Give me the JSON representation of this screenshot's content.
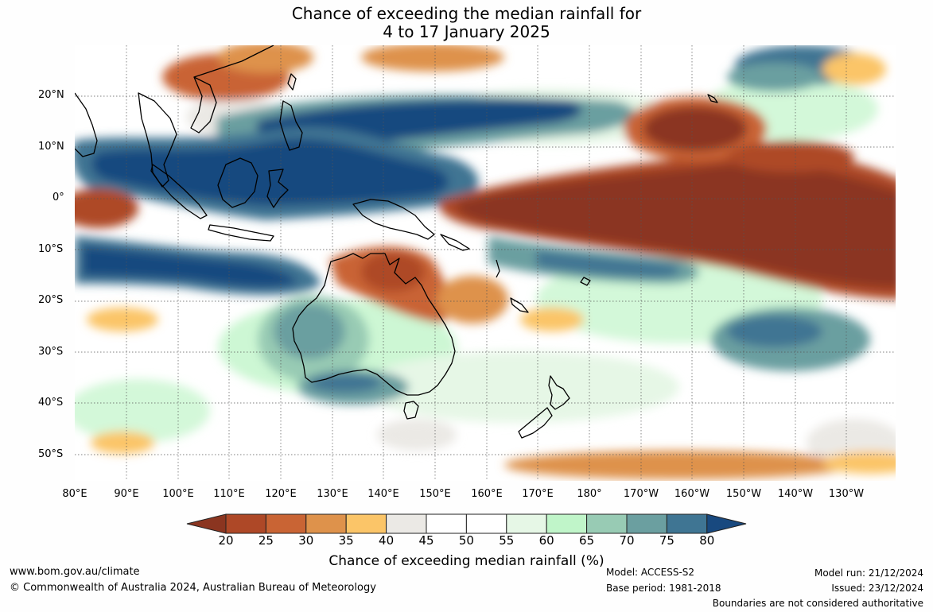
{
  "title": {
    "line1": "Chance of exceeding the median rainfall for",
    "line2": "4 to 17 January 2025"
  },
  "axes": {
    "lat_labels": [
      "20°N",
      "10°N",
      "0°",
      "10°S",
      "20°S",
      "30°S",
      "40°S",
      "50°S"
    ],
    "lon_labels": [
      "80°E",
      "90°E",
      "100°E",
      "110°E",
      "120°E",
      "130°E",
      "140°E",
      "150°E",
      "160°E",
      "170°E",
      "180°",
      "170°W",
      "160°W",
      "150°W",
      "140°W",
      "130°W"
    ]
  },
  "colorbar": {
    "ticks": [
      "20",
      "25",
      "30",
      "35",
      "40",
      "45",
      "50",
      "55",
      "60",
      "65",
      "70",
      "75",
      "80"
    ],
    "colors": [
      "#8b3520",
      "#ae4827",
      "#c96434",
      "#de924b",
      "#fbc568",
      "#ebe9e5",
      "#ffffff",
      "#ffffff",
      "#e6f7e6",
      "#c0f5c9",
      "#98cbb4",
      "#6b9fa0",
      "#3f7593",
      "#18497f"
    ],
    "label": "Chance of exceeding median rainfall (%)"
  },
  "chart_data": {
    "type": "heatmap",
    "title": "Chance of exceeding the median rainfall for 4 to 17 January 2025",
    "units": "%",
    "lon_range": [
      "80°E",
      "130°W"
    ],
    "lat_range": [
      "55°S",
      "30°N"
    ],
    "levels": [
      20,
      25,
      30,
      35,
      40,
      45,
      50,
      55,
      60,
      65,
      70,
      75,
      80
    ]
  },
  "footer": {
    "website": "www.bom.gov.au/climate",
    "copyright": "© Commonwealth of Australia 2024, Australian Bureau of Meteorology",
    "model": "Model: ACCESS-S2",
    "base_period": "Base period: 1981-2018",
    "model_run": "Model run: 21/12/2024",
    "issued": "Issued: 23/12/2024",
    "boundaries": "Boundaries are not considered authoritative"
  }
}
